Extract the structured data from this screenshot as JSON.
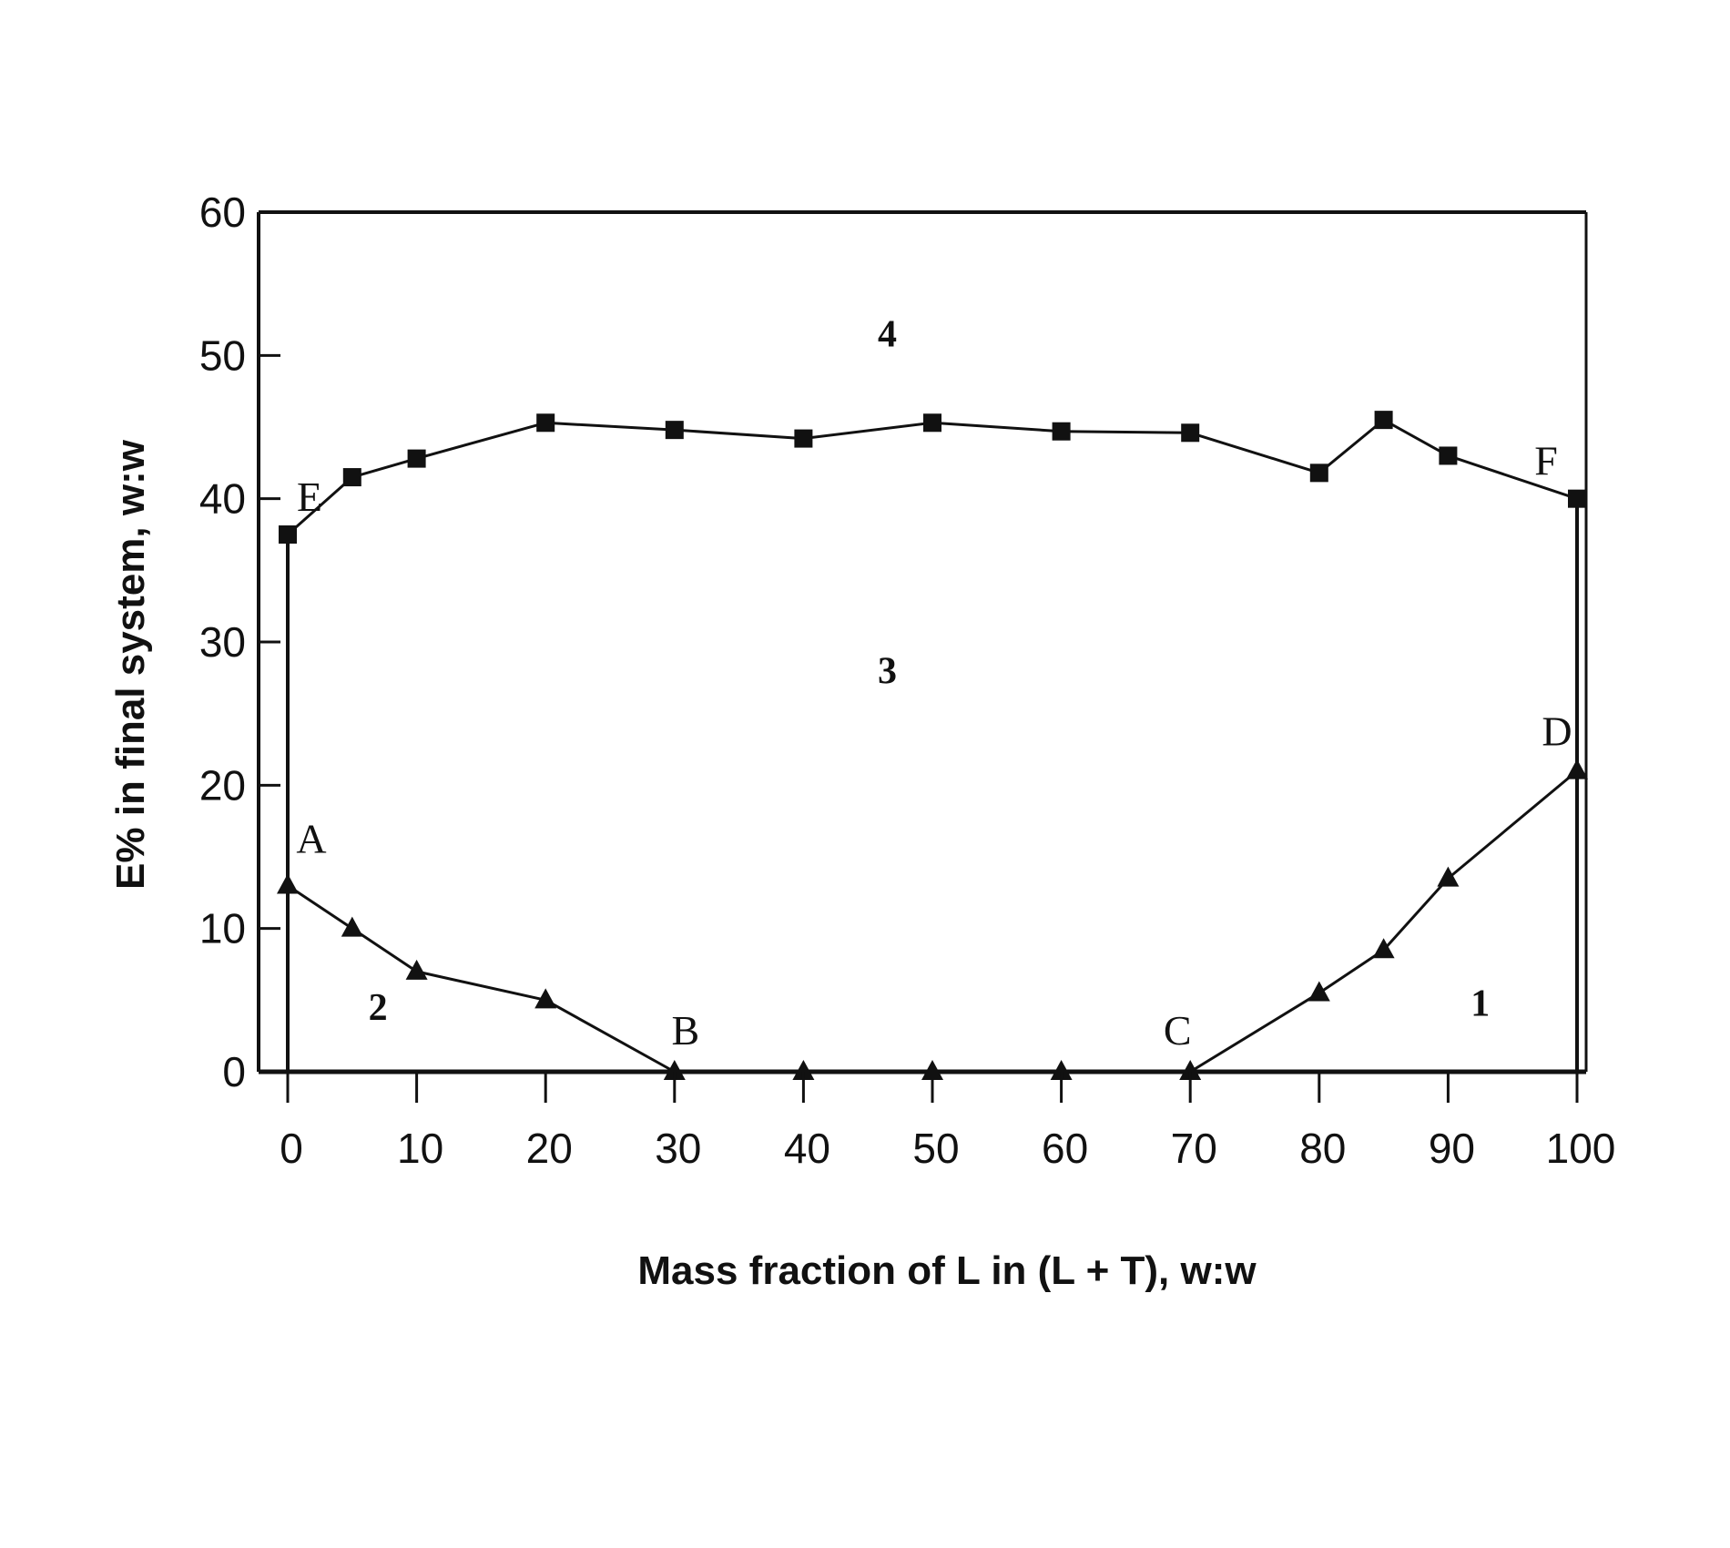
{
  "chart_data": {
    "type": "line",
    "xlabel": "Mass fraction of L in (L + T), w:w",
    "ylabel": "E% in final system, w:w",
    "xlim": [
      0,
      100
    ],
    "ylim": [
      0,
      60
    ],
    "x_ticks": [
      0,
      10,
      20,
      30,
      40,
      50,
      60,
      70,
      80,
      90,
      100
    ],
    "y_ticks": [
      0,
      10,
      20,
      30,
      40,
      50,
      60
    ],
    "x_tick_labels": [
      "0",
      "10",
      "20",
      "30",
      "40",
      "50",
      "60",
      "70",
      "80",
      "90",
      "100"
    ],
    "y_tick_labels": [
      "0",
      "10",
      "20",
      "30",
      "40",
      "50",
      "60"
    ],
    "grid": false,
    "legend": "none",
    "series": [
      {
        "marker": "square",
        "color": "#111111",
        "x": [
          0,
          5,
          10,
          20,
          30,
          40,
          50,
          60,
          70,
          80,
          85,
          90,
          100
        ],
        "y": [
          37.5,
          41.5,
          42.8,
          45.3,
          44.8,
          44.2,
          45.3,
          44.7,
          44.6,
          41.8,
          45.5,
          43.0,
          40.0
        ]
      },
      {
        "marker": "triangle",
        "color": "#111111",
        "x": [
          0,
          5,
          10,
          20,
          30,
          40,
          50,
          60,
          70,
          80,
          85,
          90,
          100
        ],
        "y": [
          13.0,
          10.0,
          7.0,
          5.0,
          0,
          0,
          0,
          0,
          0,
          5.5,
          8.5,
          13.5,
          21.0
        ]
      }
    ],
    "vertical_boundaries": [
      {
        "x": 0,
        "y_from": 0,
        "y_to": 37.5
      },
      {
        "x": 100,
        "y_from": 0,
        "y_to": 40.0
      }
    ],
    "point_annotations": [
      {
        "text": "A",
        "x": 0,
        "y": 13.0
      },
      {
        "text": "B",
        "x": 30,
        "y": 0
      },
      {
        "text": "C",
        "x": 70,
        "y": 0
      },
      {
        "text": "D",
        "x": 100,
        "y": 21.0
      },
      {
        "text": "E",
        "x": 0,
        "y": 37.5
      },
      {
        "text": "F",
        "x": 100,
        "y": 40.0
      }
    ],
    "region_labels": [
      {
        "text": "1",
        "x": 92.5,
        "y": 4.8
      },
      {
        "text": "2",
        "x": 7,
        "y": 4.5
      },
      {
        "text": "3",
        "x": 46.5,
        "y": 28
      },
      {
        "text": "4",
        "x": 46.5,
        "y": 51.5
      }
    ]
  }
}
